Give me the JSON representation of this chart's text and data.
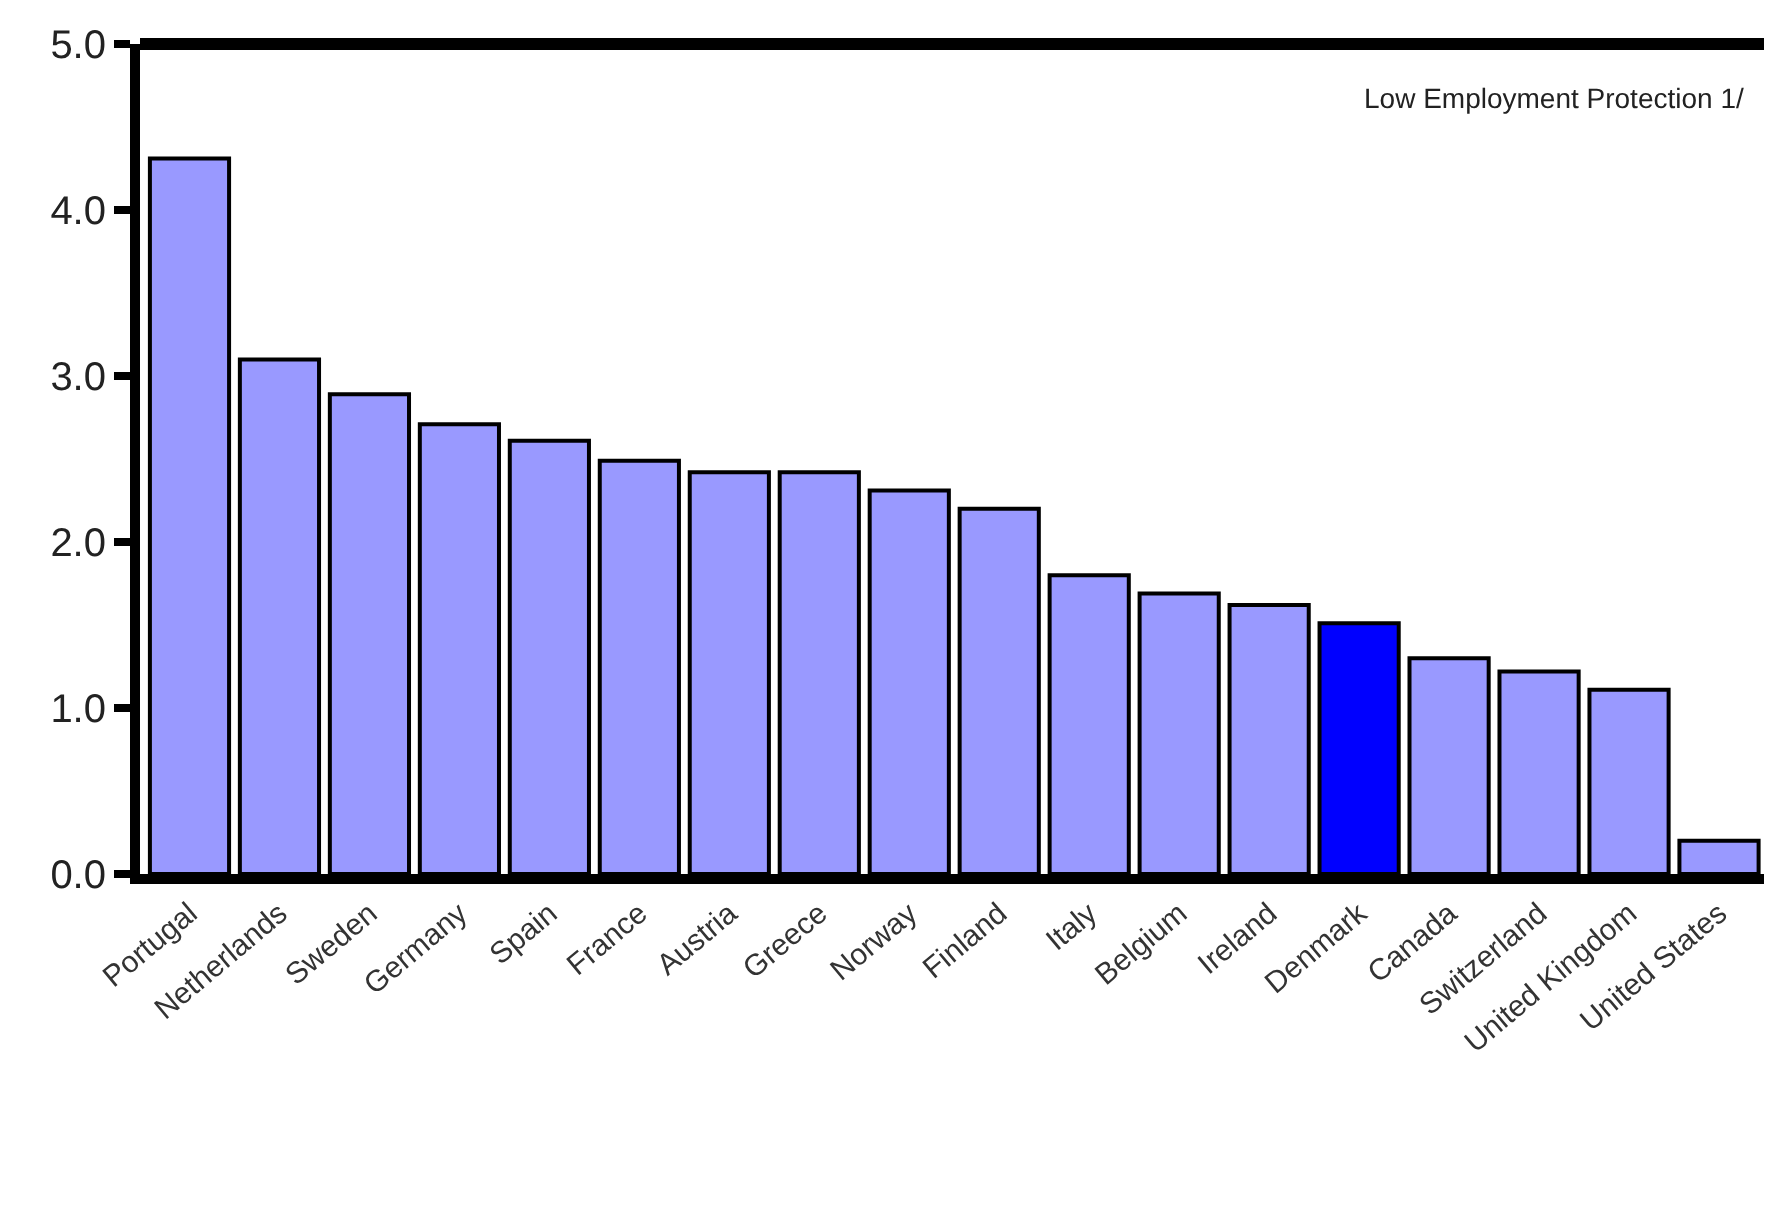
{
  "chart_data": {
    "type": "bar",
    "categories": [
      "Portugal",
      "Netherlands",
      "Sweden",
      "Germany",
      "Spain",
      "France",
      "Austria",
      "Greece",
      "Norway",
      "Finland",
      "Italy",
      "Belgium",
      "Ireland",
      "Denmark",
      "Canada",
      "Switzerland",
      "United Kingdom",
      "United States"
    ],
    "values": [
      4.31,
      3.1,
      2.89,
      2.71,
      2.61,
      2.49,
      2.42,
      2.42,
      2.31,
      2.2,
      1.8,
      1.69,
      1.62,
      1.51,
      1.3,
      1.22,
      1.11,
      0.2
    ],
    "colors": [
      "#9999ff",
      "#9999ff",
      "#9999ff",
      "#9999ff",
      "#9999ff",
      "#9999ff",
      "#9999ff",
      "#9999ff",
      "#9999ff",
      "#9999ff",
      "#9999ff",
      "#9999ff",
      "#9999ff",
      "#0000ff",
      "#9999ff",
      "#9999ff",
      "#9999ff",
      "#9999ff"
    ],
    "ylim": [
      0,
      5
    ],
    "yticks": [
      {
        "value": 0,
        "label": "0.0"
      },
      {
        "value": 1,
        "label": "1.0"
      },
      {
        "value": 2,
        "label": "2.0"
      },
      {
        "value": 3,
        "label": "3.0"
      },
      {
        "value": 4,
        "label": "4.0"
      },
      {
        "value": 5,
        "label": "5.0"
      }
    ],
    "annotations": [
      "Low Employment Protection 1/"
    ]
  }
}
